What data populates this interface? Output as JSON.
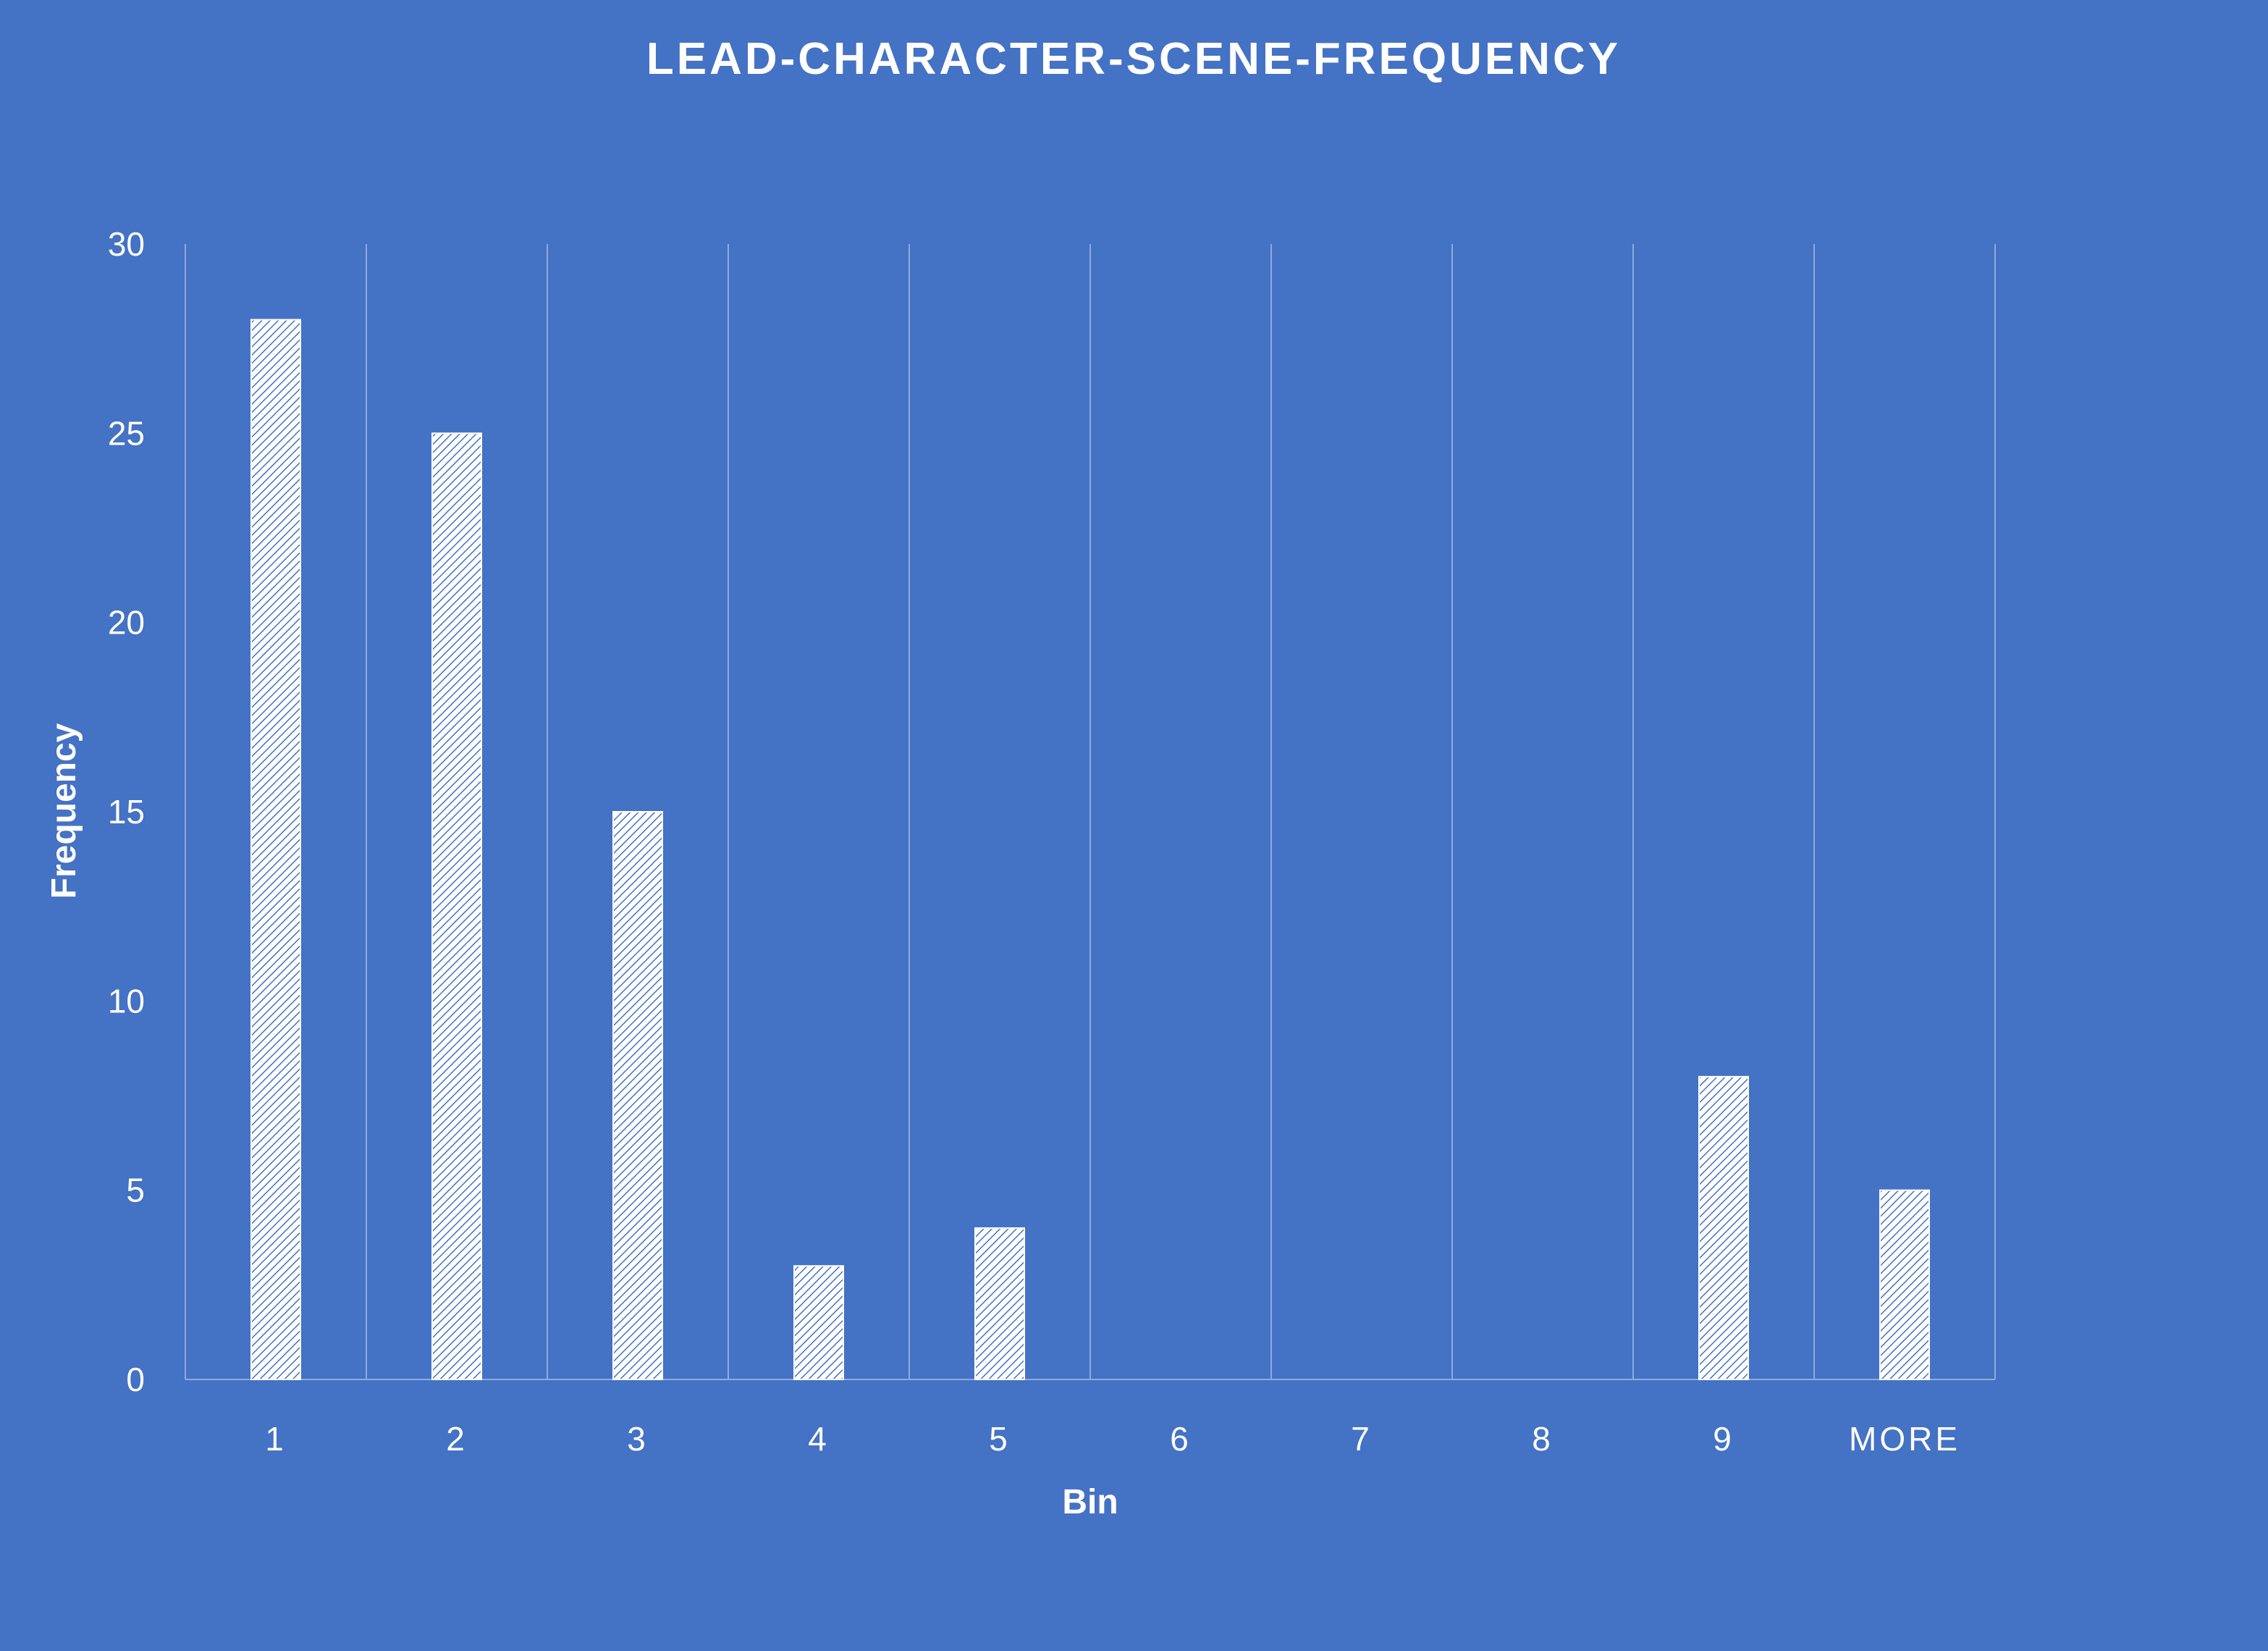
{
  "chart_data": {
    "type": "bar",
    "title": "LEAD-CHARACTER-SCENE-FREQUENCY",
    "xlabel": "Bin",
    "ylabel": "Frequency",
    "categories": [
      "1",
      "2",
      "3",
      "4",
      "5",
      "6",
      "7",
      "8",
      "9",
      "MORE"
    ],
    "values": [
      28,
      25,
      15,
      3,
      4,
      0,
      0,
      0,
      8,
      5
    ],
    "ylim": [
      0,
      30
    ],
    "yticks": [
      0,
      5,
      10,
      15,
      20,
      25,
      30
    ],
    "grid": "vertical",
    "legend": "none",
    "colors": {
      "background": "#4472C4",
      "bar": "#FFFFFF",
      "hatch": "#4472C4",
      "text": "#FFFFFF",
      "gridline": "#8FAADC"
    }
  }
}
